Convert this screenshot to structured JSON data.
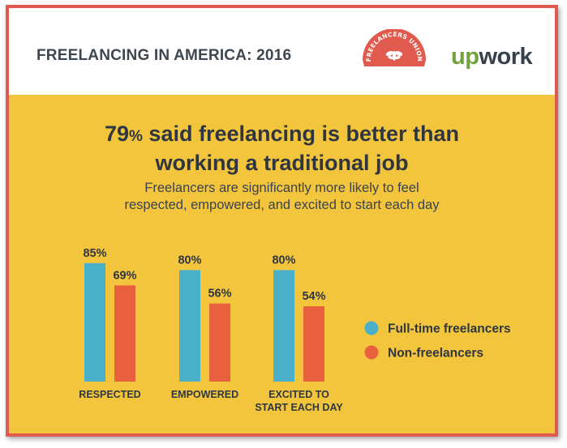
{
  "header": {
    "title": "FREELANCING IN AMERICA: 2016",
    "union_logo_text": "FREELANCERS UNION",
    "upwork_logo": {
      "up": "up",
      "work": "work"
    }
  },
  "headline": {
    "pct_num": "79",
    "pct_sign": "%",
    "line1_rest": " said freelancing is better than",
    "line2": "working a traditional job"
  },
  "subtitle": {
    "line1": "Freelancers are significantly more likely to feel",
    "line2": "respected, empowered, and excited to start each day"
  },
  "colors": {
    "background": "#f2c53d",
    "frame": "#e05a4e",
    "fulltime": "#4aafc9",
    "non": "#e8603d",
    "text": "#2f3640"
  },
  "chart_data": {
    "type": "bar",
    "title": "79% said freelancing is better than working a traditional job",
    "subtitle": "Freelancers are significantly more likely to feel respected, empowered, and excited to start each day",
    "categories": [
      {
        "lines": [
          "RESPECTED"
        ]
      },
      {
        "lines": [
          "EMPOWERED"
        ]
      },
      {
        "lines": [
          "EXCITED TO",
          "START EACH DAY"
        ]
      }
    ],
    "series": [
      {
        "name": "Full-time freelancers",
        "color": "#4aafc9",
        "values": [
          85,
          80,
          80
        ],
        "labels": [
          "85%",
          "80%",
          "80%"
        ]
      },
      {
        "name": "Non-freelancers",
        "color": "#e8603d",
        "values": [
          69,
          56,
          54
        ],
        "labels": [
          "69%",
          "56%",
          "54%"
        ]
      }
    ],
    "ylim": [
      0,
      100
    ],
    "xlabel": "",
    "ylabel": "",
    "grid": false,
    "legend": "right"
  }
}
